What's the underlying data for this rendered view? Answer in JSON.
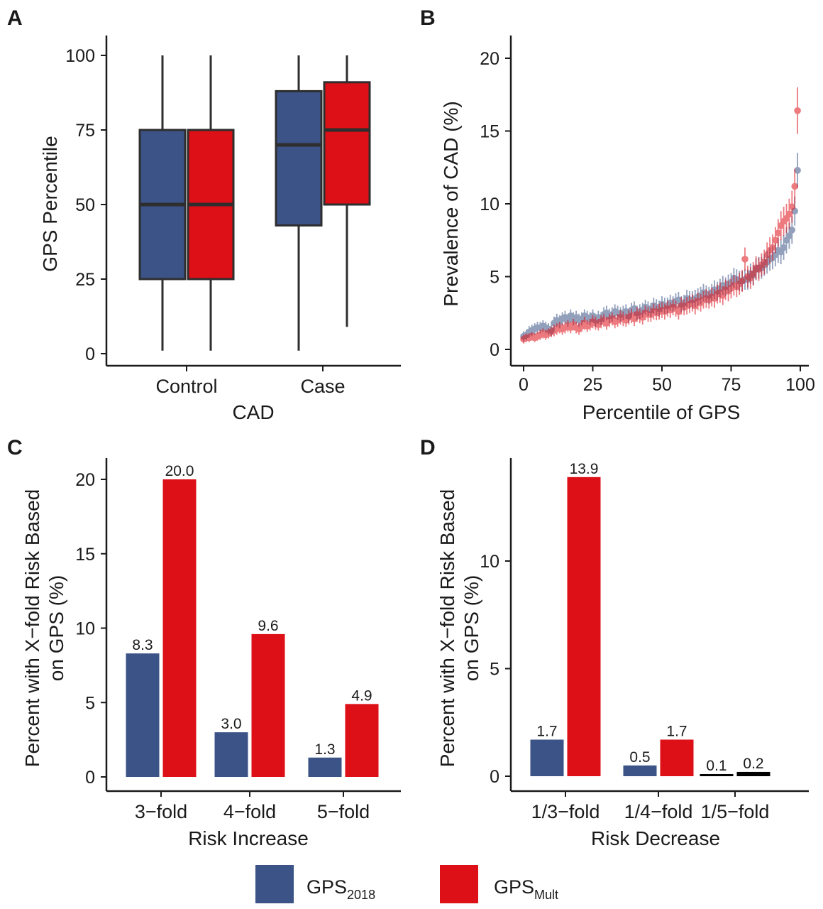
{
  "colors": {
    "gps2018": "#3b5387",
    "gpsmult": "#dd0f17",
    "box_edge": "#2e2e2e"
  },
  "legend": {
    "gps2018_base": "GPS",
    "gps2018_sub": "2018",
    "gpsmult_base": "GPS",
    "gpsmult_sub": "Mult"
  },
  "chart_data": [
    {
      "panel": "A",
      "type": "box",
      "xlabel": "CAD",
      "ylabel": "GPS Percentile",
      "ylim": [
        0,
        100
      ],
      "yticks": [
        0,
        25,
        50,
        75,
        100
      ],
      "categories": [
        "Control",
        "Case"
      ],
      "series": [
        {
          "name": "GPS2018",
          "color_key": "gps2018",
          "boxes": [
            {
              "min": 1,
              "q1": 25,
              "median": 50,
              "q3": 75,
              "max": 100
            },
            {
              "min": 1,
              "q1": 43,
              "median": 70,
              "q3": 88,
              "max": 100
            }
          ]
        },
        {
          "name": "GPSMult",
          "color_key": "gpsmult",
          "boxes": [
            {
              "min": 1,
              "q1": 25,
              "median": 50,
              "q3": 75,
              "max": 100
            },
            {
              "min": 9,
              "q1": 50,
              "median": 75,
              "q3": 91,
              "max": 100
            }
          ]
        }
      ]
    },
    {
      "panel": "B",
      "type": "scatter",
      "xlabel": "Percentile of GPS",
      "ylabel": "Prevalence of CAD (%)",
      "xlim": [
        0,
        100
      ],
      "ylim": [
        0,
        21
      ],
      "xticks": [
        0,
        25,
        50,
        75,
        100
      ],
      "yticks": [
        0,
        5,
        10,
        15,
        20
      ],
      "series": [
        {
          "name": "GPS2018",
          "color_key": "gps2018",
          "x": [
            0,
            1,
            2,
            3,
            4,
            5,
            6,
            7,
            8,
            9,
            10,
            11,
            12,
            13,
            14,
            15,
            16,
            17,
            18,
            19,
            20,
            21,
            22,
            23,
            24,
            25,
            26,
            27,
            28,
            29,
            30,
            31,
            32,
            33,
            34,
            35,
            36,
            37,
            38,
            39,
            40,
            41,
            42,
            43,
            44,
            45,
            46,
            47,
            48,
            49,
            50,
            51,
            52,
            53,
            54,
            55,
            56,
            57,
            58,
            59,
            60,
            61,
            62,
            63,
            64,
            65,
            66,
            67,
            68,
            69,
            70,
            71,
            72,
            73,
            74,
            75,
            76,
            77,
            78,
            79,
            80,
            81,
            82,
            83,
            84,
            85,
            86,
            87,
            88,
            89,
            90,
            91,
            92,
            93,
            94,
            95,
            96,
            97,
            98,
            99
          ],
          "y": [
            0.9,
            1.0,
            1.2,
            1.3,
            1.4,
            1.5,
            1.5,
            1.6,
            1.5,
            1.4,
            1.3,
            1.8,
            2.0,
            1.9,
            2.1,
            2.2,
            2.0,
            2.3,
            2.1,
            2.2,
            2.0,
            2.1,
            2.3,
            2.2,
            2.1,
            2.3,
            2.0,
            2.2,
            2.1,
            2.4,
            2.5,
            2.3,
            2.4,
            2.6,
            2.5,
            2.4,
            2.5,
            2.6,
            2.3,
            2.7,
            2.8,
            2.5,
            2.6,
            2.7,
            2.9,
            2.8,
            2.7,
            3.0,
            2.9,
            2.8,
            3.1,
            3.0,
            3.0,
            3.2,
            3.1,
            3.3,
            3.4,
            3.1,
            3.2,
            3.5,
            3.4,
            3.4,
            3.5,
            3.6,
            3.7,
            3.9,
            3.8,
            3.7,
            3.9,
            4.1,
            4.0,
            4.2,
            4.4,
            4.3,
            4.5,
            4.6,
            4.9,
            4.8,
            4.7,
            4.7,
            4.8,
            4.8,
            5.2,
            5.1,
            5.5,
            5.6,
            5.6,
            5.8,
            6.0,
            6.2,
            6.3,
            6.5,
            6.8,
            6.7,
            7.0,
            7.5,
            7.8,
            8.2,
            9.5,
            12.3
          ],
          "err": [
            0.35,
            0.35,
            0.4,
            0.4,
            0.4,
            0.4,
            0.4,
            0.4,
            0.4,
            0.4,
            0.4,
            0.45,
            0.45,
            0.45,
            0.45,
            0.45,
            0.45,
            0.45,
            0.45,
            0.45,
            0.45,
            0.45,
            0.45,
            0.45,
            0.45,
            0.45,
            0.45,
            0.45,
            0.45,
            0.5,
            0.5,
            0.5,
            0.5,
            0.5,
            0.5,
            0.5,
            0.5,
            0.5,
            0.5,
            0.5,
            0.5,
            0.5,
            0.5,
            0.5,
            0.5,
            0.5,
            0.5,
            0.55,
            0.55,
            0.55,
            0.55,
            0.55,
            0.55,
            0.55,
            0.55,
            0.55,
            0.55,
            0.55,
            0.55,
            0.6,
            0.6,
            0.6,
            0.6,
            0.6,
            0.6,
            0.6,
            0.6,
            0.6,
            0.6,
            0.65,
            0.65,
            0.65,
            0.65,
            0.65,
            0.65,
            0.65,
            0.7,
            0.7,
            0.7,
            0.7,
            0.7,
            0.7,
            0.7,
            0.7,
            0.75,
            0.75,
            0.75,
            0.75,
            0.8,
            0.8,
            0.8,
            0.8,
            0.85,
            0.85,
            0.85,
            0.9,
            0.9,
            0.95,
            1.0,
            1.2
          ]
        },
        {
          "name": "GPSMult",
          "color_key": "gpsmult",
          "x": [
            0,
            1,
            2,
            3,
            4,
            5,
            6,
            7,
            8,
            9,
            10,
            11,
            12,
            13,
            14,
            15,
            16,
            17,
            18,
            19,
            20,
            21,
            22,
            23,
            24,
            25,
            26,
            27,
            28,
            29,
            30,
            31,
            32,
            33,
            34,
            35,
            36,
            37,
            38,
            39,
            40,
            41,
            42,
            43,
            44,
            45,
            46,
            47,
            48,
            49,
            50,
            51,
            52,
            53,
            54,
            55,
            56,
            57,
            58,
            59,
            60,
            61,
            62,
            63,
            64,
            65,
            66,
            67,
            68,
            69,
            70,
            71,
            72,
            73,
            74,
            75,
            76,
            77,
            78,
            79,
            80,
            81,
            82,
            83,
            84,
            85,
            86,
            87,
            88,
            89,
            90,
            91,
            92,
            93,
            94,
            95,
            96,
            97,
            98,
            99
          ],
          "y": [
            0.7,
            0.8,
            0.8,
            0.9,
            0.8,
            0.9,
            1.0,
            1.1,
            1.0,
            1.1,
            1.2,
            1.3,
            1.4,
            1.5,
            1.4,
            1.5,
            1.6,
            1.5,
            1.7,
            1.5,
            1.4,
            1.6,
            1.8,
            1.6,
            1.7,
            1.9,
            1.8,
            1.7,
            1.9,
            2.0,
            1.8,
            2.0,
            2.1,
            1.9,
            2.0,
            2.2,
            2.1,
            2.0,
            2.2,
            2.3,
            2.1,
            2.4,
            2.3,
            2.2,
            2.5,
            2.4,
            2.4,
            2.6,
            2.5,
            2.6,
            2.7,
            2.6,
            2.8,
            2.7,
            2.9,
            2.8,
            2.6,
            3.0,
            2.9,
            3.0,
            3.1,
            3.2,
            3.0,
            3.3,
            3.2,
            3.4,
            3.5,
            3.4,
            3.6,
            3.5,
            3.8,
            3.9,
            3.7,
            4.1,
            4.0,
            4.2,
            4.4,
            4.3,
            4.5,
            4.7,
            6.2,
            5.0,
            4.9,
            5.2,
            5.6,
            5.5,
            5.8,
            6.0,
            6.5,
            6.8,
            7.0,
            7.5,
            8.0,
            8.5,
            8.8,
            9.0,
            9.3,
            9.8,
            11.2,
            16.4
          ],
          "err": [
            0.3,
            0.3,
            0.3,
            0.3,
            0.3,
            0.3,
            0.35,
            0.35,
            0.35,
            0.35,
            0.35,
            0.4,
            0.4,
            0.4,
            0.4,
            0.4,
            0.4,
            0.4,
            0.4,
            0.4,
            0.4,
            0.4,
            0.45,
            0.4,
            0.4,
            0.45,
            0.45,
            0.4,
            0.45,
            0.45,
            0.45,
            0.45,
            0.45,
            0.45,
            0.45,
            0.5,
            0.5,
            0.45,
            0.5,
            0.5,
            0.5,
            0.5,
            0.5,
            0.5,
            0.5,
            0.5,
            0.5,
            0.55,
            0.5,
            0.55,
            0.55,
            0.55,
            0.55,
            0.55,
            0.55,
            0.55,
            0.55,
            0.6,
            0.55,
            0.6,
            0.6,
            0.6,
            0.6,
            0.6,
            0.6,
            0.6,
            0.65,
            0.6,
            0.65,
            0.65,
            0.65,
            0.7,
            0.65,
            0.7,
            0.7,
            0.7,
            0.7,
            0.7,
            0.75,
            0.75,
            0.8,
            0.75,
            0.75,
            0.8,
            0.8,
            0.8,
            0.8,
            0.85,
            0.85,
            0.9,
            0.9,
            0.9,
            0.95,
            1.0,
            1.0,
            1.0,
            1.05,
            1.1,
            1.2,
            1.6
          ]
        }
      ]
    },
    {
      "panel": "C",
      "type": "bar",
      "xlabel": "Risk Increase",
      "ylabel_lines": [
        "Percent with X−fold Risk Based",
        "on GPS (%)"
      ],
      "ylim": [
        0,
        21
      ],
      "yticks": [
        0,
        5,
        10,
        15,
        20
      ],
      "categories": [
        "3−fold",
        "4−fold",
        "5−fold"
      ],
      "series": [
        {
          "name": "GPS2018",
          "color_key": "gps2018",
          "values": [
            8.3,
            3.0,
            1.3
          ],
          "labels": [
            "8.3",
            "3.0",
            "1.3"
          ]
        },
        {
          "name": "GPSMult",
          "color_key": "gpsmult",
          "values": [
            20.0,
            9.6,
            4.9
          ],
          "labels": [
            "20.0",
            "9.6",
            "4.9"
          ]
        }
      ]
    },
    {
      "panel": "D",
      "type": "bar",
      "xlabel": "Risk Decrease",
      "ylabel_lines": [
        "Percent with X−fold Risk Based",
        "on GPS (%)"
      ],
      "ylim": [
        0,
        14.6
      ],
      "yticks": [
        0,
        5,
        10
      ],
      "categories": [
        "1/3−fold",
        "1/4−fold",
        "1/5−fold"
      ],
      "series": [
        {
          "name": "GPS2018",
          "color_key": "gps2018",
          "values": [
            1.7,
            0.5,
            0.1
          ],
          "labels": [
            "1.7",
            "0.5",
            "0.1"
          ]
        },
        {
          "name": "GPSMult",
          "color_key": "gpsmult",
          "values": [
            13.9,
            1.7,
            0.2
          ],
          "labels": [
            "13.9",
            "1.7",
            "0.2"
          ]
        }
      ]
    }
  ]
}
